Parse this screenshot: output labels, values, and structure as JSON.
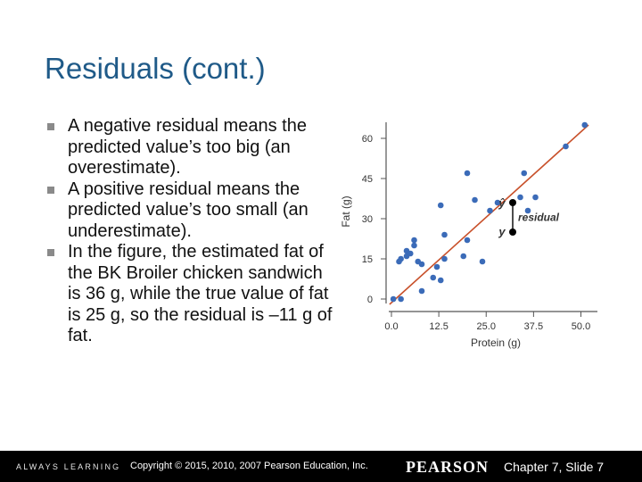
{
  "slide": {
    "title": "Residuals (cont.)",
    "bullets": [
      "A negative residual means the predicted value’s too big (an overestimate).",
      "A positive residual means the predicted value’s too small (an underestimate).",
      "In the figure, the estimated fat of the BK Broiler chicken sandwich is 36 g, while the true value of fat is 25 g, so the residual is –11 g of fat."
    ]
  },
  "chart_data": {
    "type": "scatter",
    "xlabel": "Protein (g)",
    "ylabel": "Fat (g)",
    "xlim": [
      0,
      52
    ],
    "ylim": [
      0,
      65
    ],
    "xticks": [
      0,
      12.5,
      25,
      37.5,
      50
    ],
    "xtick_labels": [
      "0.0",
      "12.5",
      "25.0",
      "37.5",
      "50.0"
    ],
    "yticks": [
      0,
      15,
      30,
      45,
      60
    ],
    "ytick_labels": [
      "0",
      "15",
      "30",
      "45",
      "60"
    ],
    "points": [
      [
        0.5,
        0
      ],
      [
        2.5,
        0
      ],
      [
        2,
        14
      ],
      [
        2.5,
        15
      ],
      [
        4,
        16
      ],
      [
        4,
        18
      ],
      [
        5,
        17
      ],
      [
        6,
        20
      ],
      [
        6,
        22
      ],
      [
        7,
        14
      ],
      [
        8,
        13
      ],
      [
        8,
        3
      ],
      [
        11,
        8
      ],
      [
        12,
        12
      ],
      [
        13,
        7
      ],
      [
        13,
        35
      ],
      [
        14,
        24
      ],
      [
        14,
        15
      ],
      [
        19,
        16
      ],
      [
        20,
        22
      ],
      [
        20,
        47
      ],
      [
        22,
        37
      ],
      [
        24,
        14
      ],
      [
        26,
        33
      ],
      [
        28,
        36
      ],
      [
        32,
        25
      ],
      [
        34,
        38
      ],
      [
        35,
        47
      ],
      [
        36,
        33
      ],
      [
        38,
        38
      ],
      [
        46,
        57
      ],
      [
        51,
        65
      ]
    ],
    "regression_line": {
      "x": [
        -0.5,
        52
      ],
      "y": [
        -2,
        65
      ]
    },
    "highlight": {
      "x": 32,
      "predicted": 36,
      "actual": 25,
      "predicted_label": "ŷ",
      "actual_label": "y",
      "residual_label": "residual"
    },
    "grid": false,
    "colors": {
      "points": "#3b6bb8",
      "line": "#c8502a",
      "highlight": "#000000"
    }
  },
  "footer": {
    "always_learning": "ALWAYS LEARNING",
    "copyright": "Copyright © 2015, 2010, 2007 Pearson Education, Inc.",
    "brand": "PEARSON",
    "slide_info": "Chapter 7, Slide 7"
  }
}
